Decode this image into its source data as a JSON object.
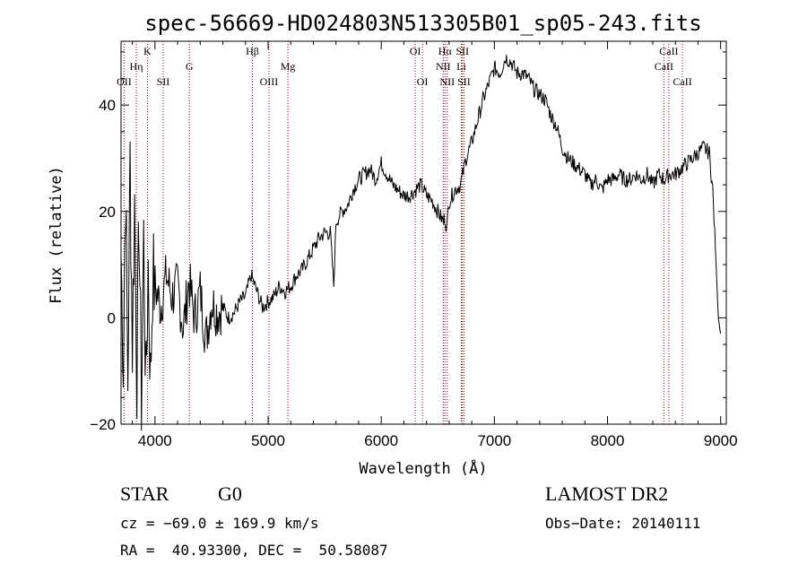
{
  "chart_data": {
    "type": "line",
    "title": "spec-56669-HD024803N513305B01_sp05-243.fits",
    "xlabel": "Wavelength (Å)",
    "ylabel": "Flux (relative)",
    "xlim": [
      3700,
      9050
    ],
    "ylim": [
      -20,
      52
    ],
    "xticks": [
      4000,
      5000,
      6000,
      7000,
      8000,
      9000
    ],
    "yticks": [
      -20,
      0,
      20,
      40
    ],
    "grid": false,
    "series": [
      {
        "x": [
          3700,
          3720,
          3740,
          3760,
          3780,
          3800,
          3820,
          3840,
          3860,
          3880,
          3900,
          3920,
          3940,
          3960,
          3980,
          4000,
          4050,
          4100,
          4150,
          4200,
          4250,
          4300,
          4350,
          4400,
          4450,
          4500,
          4550,
          4600,
          4650,
          4700,
          4750,
          4800,
          4850,
          4900,
          4950,
          5000,
          5050,
          5100,
          5150,
          5200,
          5250,
          5300,
          5350,
          5400,
          5450,
          5500,
          5550,
          5580,
          5600,
          5650,
          5700,
          5750,
          5800,
          5850,
          5900,
          5950,
          6000,
          6050,
          6100,
          6150,
          6200,
          6250,
          6300,
          6350,
          6400,
          6450,
          6500,
          6550,
          6560,
          6580,
          6600,
          6650,
          6700,
          6750,
          6800,
          6850,
          6900,
          6950,
          7000,
          7050,
          7100,
          7150,
          7200,
          7250,
          7300,
          7350,
          7400,
          7450,
          7500,
          7550,
          7600,
          7650,
          7700,
          7750,
          7800,
          7850,
          7900,
          7950,
          8000,
          8050,
          8100,
          8150,
          8200,
          8250,
          8300,
          8350,
          8400,
          8450,
          8500,
          8550,
          8600,
          8650,
          8700,
          8750,
          8800,
          8850,
          8900,
          8930,
          8960,
          8980,
          9000
        ],
        "y": [
          12,
          -8,
          25,
          -12,
          30,
          -5,
          22,
          -10,
          18,
          -15,
          15,
          -14,
          10,
          -12,
          8,
          6,
          2,
          8,
          4,
          6,
          -2,
          7,
          0,
          5,
          -4,
          3,
          1,
          2,
          0,
          1,
          3,
          4,
          8,
          5,
          2,
          3,
          4,
          6,
          5,
          6,
          8,
          9,
          11,
          13,
          15,
          16,
          16,
          6,
          18,
          20,
          21,
          24,
          26,
          27,
          28,
          26,
          29,
          27,
          25,
          24,
          23,
          23,
          24,
          25,
          23,
          22,
          20,
          18,
          19,
          17,
          22,
          24,
          25,
          30,
          33,
          37,
          41,
          44,
          47,
          46,
          49,
          48,
          46,
          46,
          45,
          43,
          42,
          41,
          38,
          36,
          32,
          30,
          29,
          28,
          27,
          25,
          26,
          24,
          26,
          26,
          27,
          26,
          26,
          27,
          26,
          27,
          25,
          27,
          26,
          27,
          27,
          28,
          29,
          30,
          31,
          32,
          31,
          24,
          10,
          0,
          -3
        ]
      }
    ],
    "spectral_lines": [
      {
        "label": "OII",
        "x": 3727,
        "row": 3
      },
      {
        "label": "Hη",
        "x": 3835,
        "row": 2
      },
      {
        "label": "K",
        "x": 3934,
        "row": 1
      },
      {
        "label": "SII",
        "x": 4072,
        "row": 3
      },
      {
        "label": "G",
        "x": 4304,
        "row": 2
      },
      {
        "label": "Hβ",
        "x": 4861,
        "row": 1
      },
      {
        "label": "OIII",
        "x": 5007,
        "row": 3
      },
      {
        "label": "Mg",
        "x": 5175,
        "row": 2
      },
      {
        "label": "OI",
        "x": 6300,
        "row": 1
      },
      {
        "label": "OI",
        "x": 6364,
        "row": 3
      },
      {
        "label": "Hα",
        "x": 6563,
        "row": 1
      },
      {
        "label": "NII",
        "x": 6548,
        "row": 2
      },
      {
        "label": "NII",
        "x": 6583,
        "row": 3
      },
      {
        "label": "SII",
        "x": 6717,
        "row": 1
      },
      {
        "label": "Li",
        "x": 6708,
        "row": 2
      },
      {
        "label": "SII",
        "x": 6731,
        "row": 3
      },
      {
        "label": "CaII",
        "x": 8498,
        "row": 2
      },
      {
        "label": "CaII",
        "x": 8542,
        "row": 1
      },
      {
        "label": "CaII",
        "x": 8662,
        "row": 3
      }
    ]
  },
  "info": {
    "object_class": "STAR",
    "subclass": "G0",
    "survey": "LAMOST DR2",
    "cz": "cz = −69.0 ± 169.9 km/s",
    "obs_date": "Obs−Date: 20140111",
    "coords": "RA =  40.93300, DEC =  50.58087"
  },
  "colors": {
    "line": "#000000",
    "marker_line": "#8b0000"
  }
}
